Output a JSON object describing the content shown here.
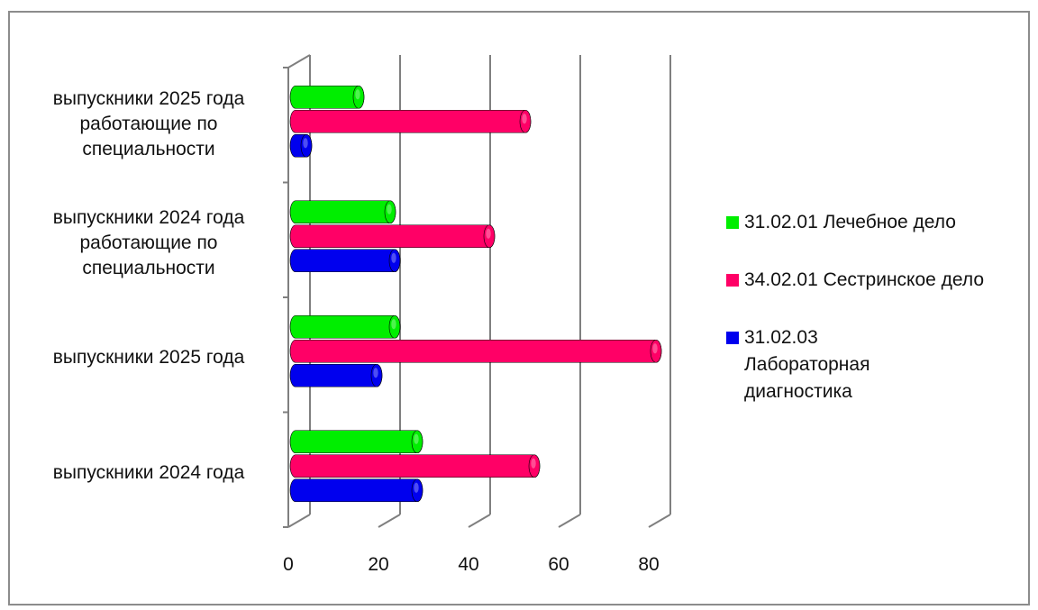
{
  "chart_data": {
    "type": "bar",
    "orientation": "horizontal",
    "style": "3d-cylinder",
    "categories": [
      "выпускники 2024 года",
      "выпускники 2025 года",
      "выпускники 2024 года работающие по специальности",
      "выпускники 2025 года работающие по специальности"
    ],
    "series": [
      {
        "name": "31.02.01 Лечебное дело",
        "color": "#00ee00",
        "values": [
          27,
          22,
          21,
          14
        ]
      },
      {
        "name": "34.02.01 Сестринское дело",
        "color": "#ff0066",
        "values": [
          53,
          80,
          43,
          51
        ]
      },
      {
        "name": "31.02.03 Лабораторная диагностика",
        "color": "#0000ee",
        "values": [
          27,
          18,
          22,
          2
        ]
      }
    ],
    "xlim": [
      0,
      80
    ],
    "xticks": [
      "0",
      "20",
      "40",
      "60",
      "80"
    ],
    "grid": true,
    "legend_position": "right"
  }
}
